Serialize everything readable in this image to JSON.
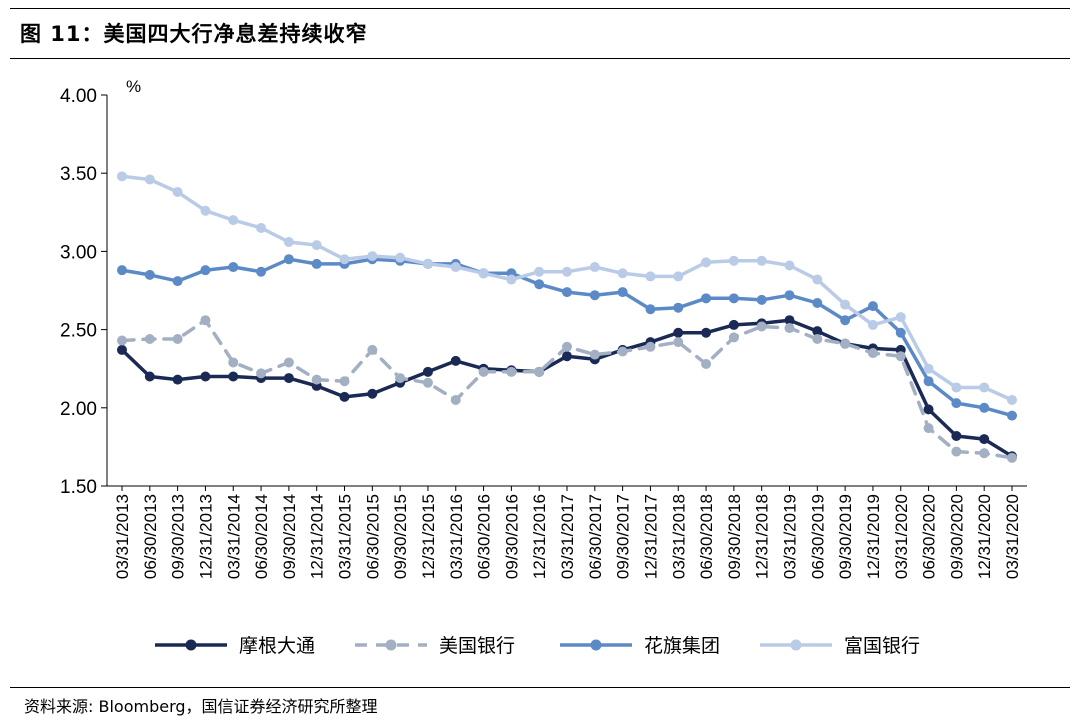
{
  "figure": {
    "title": "图 11：美国四大行净息差持续收窄",
    "source": "资料来源: Bloomberg，国信证券经济研究所整理"
  },
  "chart_data": {
    "type": "line",
    "ylabel": "%",
    "ylim": [
      1.5,
      4.0
    ],
    "yticks": [
      "4.00",
      "3.50",
      "3.00",
      "2.50",
      "2.00",
      "1.50"
    ],
    "grid": false,
    "legend_position": "bottom",
    "categories": [
      "03/31/2013",
      "06/30/2013",
      "09/30/2013",
      "12/31/2013",
      "03/31/2014",
      "06/30/2014",
      "09/30/2014",
      "12/31/2014",
      "03/31/2015",
      "06/30/2015",
      "09/30/2015",
      "12/31/2015",
      "03/31/2016",
      "06/30/2016",
      "09/30/2016",
      "12/31/2016",
      "03/31/2017",
      "06/30/2017",
      "09/30/2017",
      "12/31/2017",
      "03/31/2018",
      "06/30/2018",
      "09/30/2018",
      "12/31/2018",
      "03/31/2019",
      "06/30/2019",
      "09/30/2019",
      "12/31/2019",
      "03/31/2020",
      "06/30/2020",
      "09/30/2020",
      "12/31/2020",
      "03/31/2020"
    ],
    "series": [
      {
        "name": "摩根大通",
        "color": "#1a2a55",
        "dash": false,
        "values": [
          2.37,
          2.2,
          2.18,
          2.2,
          2.2,
          2.19,
          2.19,
          2.14,
          2.07,
          2.09,
          2.16,
          2.23,
          2.3,
          2.25,
          2.24,
          2.23,
          2.33,
          2.31,
          2.37,
          2.42,
          2.48,
          2.48,
          2.53,
          2.54,
          2.56,
          2.49,
          2.41,
          2.38,
          2.37,
          1.99,
          1.82,
          1.8,
          1.69
        ]
      },
      {
        "name": "美国银行",
        "color": "#a3afc2",
        "dash": true,
        "values": [
          2.43,
          2.44,
          2.44,
          2.56,
          2.29,
          2.22,
          2.29,
          2.18,
          2.17,
          2.37,
          2.19,
          2.16,
          2.05,
          2.23,
          2.23,
          2.23,
          2.39,
          2.34,
          2.36,
          2.39,
          2.42,
          2.28,
          2.45,
          2.52,
          2.51,
          2.44,
          2.41,
          2.35,
          2.33,
          1.87,
          1.72,
          1.71,
          1.68
        ]
      },
      {
        "name": "花旗集团",
        "color": "#5b8ac6",
        "dash": false,
        "values": [
          2.88,
          2.85,
          2.81,
          2.88,
          2.9,
          2.87,
          2.95,
          2.92,
          2.92,
          2.95,
          2.94,
          2.92,
          2.92,
          2.86,
          2.86,
          2.79,
          2.74,
          2.72,
          2.74,
          2.63,
          2.64,
          2.7,
          2.7,
          2.69,
          2.72,
          2.67,
          2.56,
          2.65,
          2.48,
          2.17,
          2.03,
          2.0,
          1.95
        ]
      },
      {
        "name": "富国银行",
        "color": "#b9cbe6",
        "dash": false,
        "values": [
          3.48,
          3.46,
          3.38,
          3.26,
          3.2,
          3.15,
          3.06,
          3.04,
          2.95,
          2.97,
          2.96,
          2.92,
          2.9,
          2.86,
          2.82,
          2.87,
          2.87,
          2.9,
          2.86,
          2.84,
          2.84,
          2.93,
          2.94,
          2.94,
          2.91,
          2.82,
          2.66,
          2.53,
          2.58,
          2.25,
          2.13,
          2.13,
          2.05
        ]
      }
    ]
  }
}
